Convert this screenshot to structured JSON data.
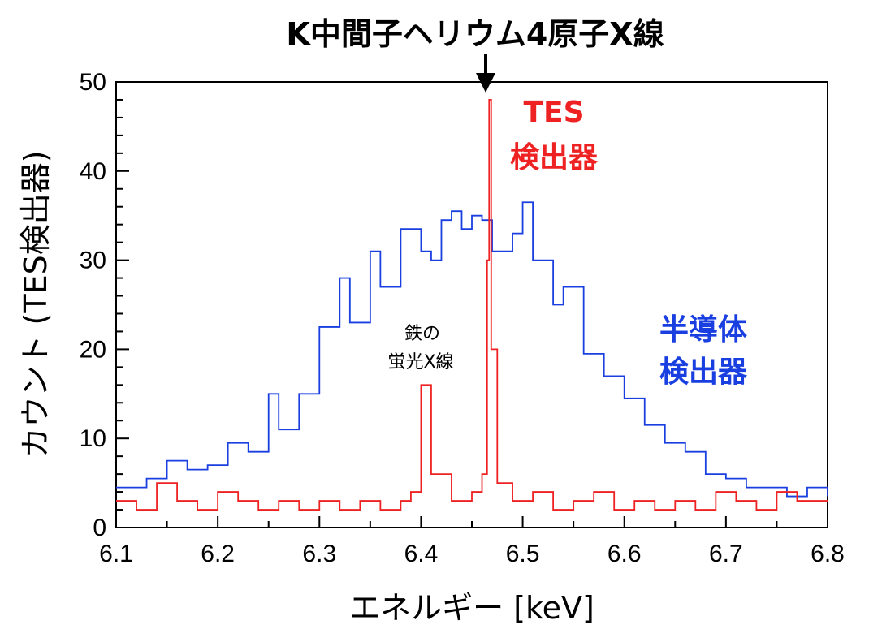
{
  "chart_data": {
    "type": "line",
    "title": "K中間子ヘリウム4原子X線",
    "xlabel": "エネルギー [keV]",
    "ylabel": "カウント (TES検出器)",
    "xlim": [
      6.1,
      6.8
    ],
    "ylim": [
      0,
      50
    ],
    "xticks": [
      "6.1",
      "6.2",
      "6.3",
      "6.4",
      "6.5",
      "6.6",
      "6.7",
      "6.8"
    ],
    "yticks": [
      "0",
      "10",
      "20",
      "30",
      "40",
      "50"
    ],
    "grid": false,
    "series": [
      {
        "name": "半導体 検出器",
        "color": "#1a3fe0",
        "step": "histogram",
        "x": [
          6.1,
          6.13,
          6.15,
          6.17,
          6.19,
          6.21,
          6.23,
          6.25,
          6.26,
          6.28,
          6.3,
          6.32,
          6.33,
          6.35,
          6.36,
          6.38,
          6.4,
          6.41,
          6.42,
          6.43,
          6.44,
          6.45,
          6.46,
          6.47,
          6.49,
          6.5,
          6.51,
          6.53,
          6.54,
          6.56,
          6.58,
          6.6,
          6.62,
          6.64,
          6.66,
          6.68,
          6.7,
          6.72,
          6.74,
          6.76,
          6.78,
          6.8
        ],
        "values": [
          4.5,
          5.5,
          7.5,
          6.5,
          7.0,
          9.5,
          8.5,
          15.0,
          11.0,
          15.0,
          22.5,
          28.0,
          23.0,
          31.0,
          27.0,
          33.5,
          31.0,
          30.0,
          34.5,
          35.5,
          33.5,
          35.0,
          34.5,
          31.0,
          33.0,
          36.5,
          30.0,
          25.0,
          27.0,
          19.5,
          17.0,
          14.5,
          11.5,
          9.5,
          8.5,
          6.0,
          5.5,
          4.5,
          4.5,
          3.5,
          4.5,
          3.5
        ]
      },
      {
        "name": "TES 検出器",
        "color": "#ee2222",
        "step": "histogram",
        "x": [
          6.1,
          6.12,
          6.14,
          6.16,
          6.18,
          6.2,
          6.22,
          6.24,
          6.26,
          6.28,
          6.3,
          6.32,
          6.34,
          6.36,
          6.38,
          6.39,
          6.4,
          6.41,
          6.43,
          6.45,
          6.46,
          6.465,
          6.467,
          6.469,
          6.475,
          6.49,
          6.51,
          6.53,
          6.55,
          6.57,
          6.59,
          6.61,
          6.63,
          6.65,
          6.67,
          6.69,
          6.71,
          6.73,
          6.75,
          6.77,
          6.79
        ],
        "values": [
          3,
          2,
          5,
          3,
          2,
          4,
          3,
          2,
          3,
          2,
          3,
          2,
          3,
          2,
          3,
          4,
          16,
          6,
          3,
          4,
          6,
          30,
          48,
          20,
          5,
          3,
          4,
          2,
          3,
          4,
          2,
          3,
          2,
          3,
          2,
          4,
          3,
          2,
          4,
          3,
          3
        ]
      }
    ],
    "annotations": {
      "tes_line1": "TES",
      "tes_line2": "検出器",
      "semi_line1": "半導体",
      "semi_line2": "検出器",
      "iron_line1": "鉄の",
      "iron_line2": "蛍光X線"
    }
  }
}
